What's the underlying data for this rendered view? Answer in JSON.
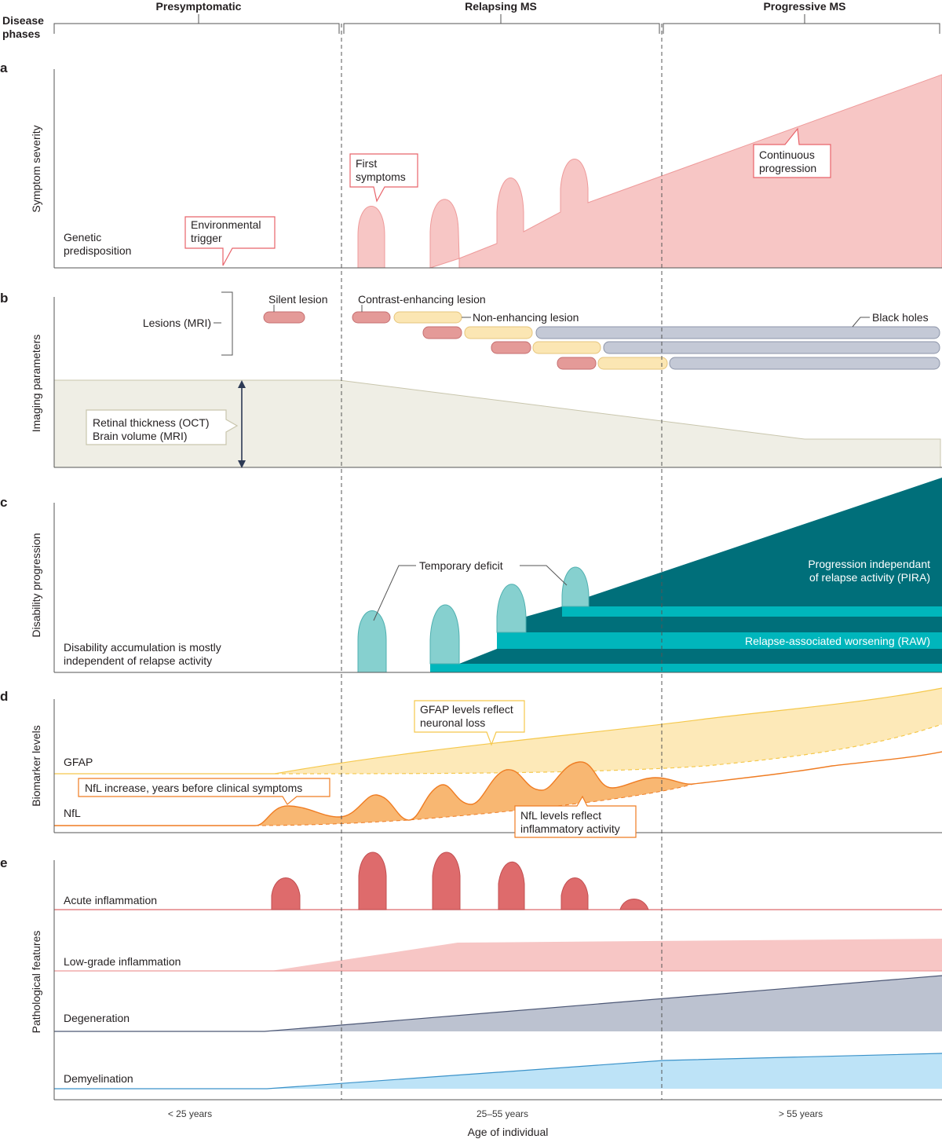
{
  "header": {
    "disease_phases_label": "Disease\nphases",
    "phases": [
      "Presymptomatic",
      "Relapsing MS",
      "Progressive MS"
    ]
  },
  "panel_a": {
    "letter": "a",
    "ylabel": "Symptom severity",
    "genetic": "Genetic\npredisposition",
    "trigger": "Environmental\ntrigger",
    "first_symptoms": "First\nsymptoms",
    "continuous": "Continuous\nprogression"
  },
  "panel_b": {
    "letter": "b",
    "ylabel": "Imaging parameters",
    "lesions": "Lesions (MRI)",
    "silent": "Silent lesion",
    "contrast": "Contrast-enhancing lesion",
    "nonenh": "Non-enhancing lesion",
    "black": "Black holes",
    "retinal": "Retinal thickness (OCT)\nBrain volume (MRI)"
  },
  "panel_c": {
    "letter": "c",
    "ylabel": "Disability progression",
    "note": "Disability accumulation is mostly\nindependent of relapse activity",
    "temporary": "Temporary deficit",
    "pira": "Progression independant\nof relapse activity (PIRA)",
    "raw": "Relapse-associated worsening (RAW)"
  },
  "panel_d": {
    "letter": "d",
    "ylabel": "Biomarker levels",
    "gfap": "GFAP",
    "nfl": "NfL",
    "gfap_note": "GFAP levels reflect\nneuronal loss",
    "nfl_increase": "NfL increase, years before clinical symptoms",
    "nfl_note": "NfL levels reflect\ninflammatory activity"
  },
  "panel_e": {
    "letter": "e",
    "ylabel": "Pathological features",
    "rows": [
      "Acute inflammation",
      "Low-grade inflammation",
      "Degeneration",
      "Demyelination"
    ]
  },
  "x_axis": {
    "ticks": [
      "< 25 years",
      "25–55 years",
      "> 55 years"
    ],
    "label": "Age of individual"
  },
  "colors": {
    "symptom_pink": "#f7c6c5",
    "symptom_stroke": "#ee9a9a",
    "callout_red": "#e8636a",
    "lesion_red": "#e49a98",
    "lesion_yellow": "#fbe6b3",
    "lesion_grey": "#c4c9d6",
    "volume_fill": "#efeee5",
    "teal_light": "#86d0cf",
    "teal_mid": "#00b6bc",
    "teal_dark": "#006f7a",
    "gfap_fill": "#fde9b8",
    "gfap_stroke": "#f5c84c",
    "nfl_fill": "#f8b772",
    "nfl_stroke": "#ef7c22",
    "acute_red": "#de6b6c",
    "lowgrade_pink": "#f7c6c5",
    "degeneration_grey": "#bcc2d0",
    "demyelination_blue": "#bde3f7"
  }
}
